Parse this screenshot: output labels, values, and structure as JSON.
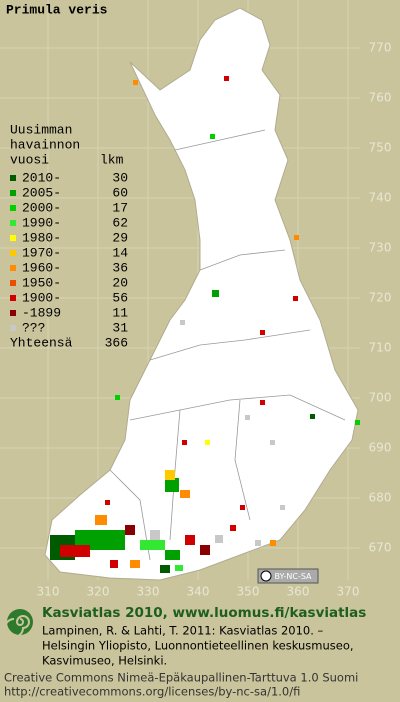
{
  "title": "Primula veris",
  "legend": {
    "heading": [
      "Uusimman",
      "havainnon",
      "vuosi"
    ],
    "count_heading": "lkm",
    "rows": [
      {
        "label": "2010-",
        "count": 30,
        "color": "#005a00"
      },
      {
        "label": "2005-",
        "count": 60,
        "color": "#00a000"
      },
      {
        "label": "2000-",
        "count": 17,
        "color": "#00d000"
      },
      {
        "label": "1990-",
        "count": 62,
        "color": "#33e833"
      },
      {
        "label": "1980-",
        "count": 29,
        "color": "#ffff00"
      },
      {
        "label": "1970-",
        "count": 14,
        "color": "#ffc800"
      },
      {
        "label": "1960-",
        "count": 36,
        "color": "#ff8c00"
      },
      {
        "label": "1950-",
        "count": 20,
        "color": "#e85000"
      },
      {
        "label": "1900-",
        "count": 56,
        "color": "#d00000"
      },
      {
        "label": "-1899",
        "count": 11,
        "color": "#8a0000"
      },
      {
        "label": "???",
        "count": 31,
        "color": "#c8c8c8"
      }
    ],
    "total_label": "Yhteensä",
    "total": 366
  },
  "y_axis": [
    770,
    760,
    750,
    740,
    730,
    720,
    710,
    700,
    690,
    680,
    670
  ],
  "x_axis": [
    310,
    320,
    330,
    340,
    350,
    360,
    370
  ],
  "license_badge": "BY-NC-SA",
  "footer": {
    "title": "Kasviatlas 2010, www.luomus.fi/kasviatlas",
    "citation": [
      "Lampinen, R. & Lahti, T. 2011: Kasviatlas 2010. –",
      "Helsingin Yliopisto, Luonnontieteellinen keskusmuseo,",
      "Kasvimuseo, Helsinki."
    ],
    "license": [
      "Creative Commons Nimeä-Epäkaupallinen-Tarttuva 1.0 Suomi",
      "http://creativecommons.org/licenses/by-nc-sa/1.0/fi"
    ]
  }
}
